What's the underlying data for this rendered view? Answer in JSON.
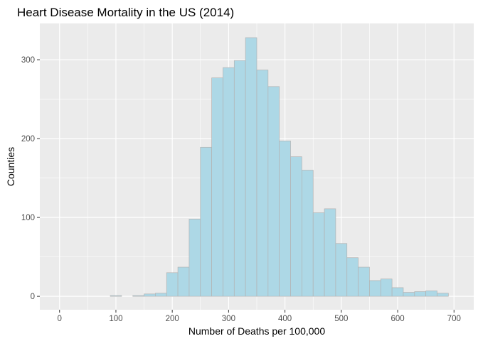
{
  "chart_data": {
    "type": "bar",
    "title": "Heart Disease Mortality in the US (2014)",
    "xlabel": "Number of Deaths per 100,000",
    "ylabel": "Counties",
    "xlim": [
      -35,
      735
    ],
    "ylim": [
      -17,
      346
    ],
    "x_ticks": [
      0,
      100,
      200,
      300,
      400,
      500,
      600,
      700
    ],
    "y_ticks": [
      0,
      100,
      200,
      300
    ],
    "bin_width": 20,
    "bins": [
      {
        "start": 10,
        "count": 0
      },
      {
        "start": 30,
        "count": 0
      },
      {
        "start": 50,
        "count": 0
      },
      {
        "start": 70,
        "count": 0
      },
      {
        "start": 90,
        "count": 1
      },
      {
        "start": 110,
        "count": 0
      },
      {
        "start": 130,
        "count": 1
      },
      {
        "start": 150,
        "count": 3
      },
      {
        "start": 170,
        "count": 4
      },
      {
        "start": 190,
        "count": 30
      },
      {
        "start": 210,
        "count": 37
      },
      {
        "start": 230,
        "count": 98
      },
      {
        "start": 250,
        "count": 189
      },
      {
        "start": 270,
        "count": 277
      },
      {
        "start": 290,
        "count": 290
      },
      {
        "start": 310,
        "count": 299
      },
      {
        "start": 330,
        "count": 328
      },
      {
        "start": 350,
        "count": 287
      },
      {
        "start": 370,
        "count": 266
      },
      {
        "start": 390,
        "count": 197
      },
      {
        "start": 410,
        "count": 177
      },
      {
        "start": 430,
        "count": 160
      },
      {
        "start": 450,
        "count": 106
      },
      {
        "start": 470,
        "count": 111
      },
      {
        "start": 490,
        "count": 67
      },
      {
        "start": 510,
        "count": 49
      },
      {
        "start": 530,
        "count": 37
      },
      {
        "start": 550,
        "count": 20
      },
      {
        "start": 570,
        "count": 22
      },
      {
        "start": 590,
        "count": 11
      },
      {
        "start": 610,
        "count": 5
      },
      {
        "start": 630,
        "count": 6
      },
      {
        "start": 650,
        "count": 7
      },
      {
        "start": 670,
        "count": 4
      }
    ],
    "colors": {
      "panel": "#ebebeb",
      "grid_major": "#ffffff",
      "bar_fill": "#add8e6",
      "bar_stroke": "#b3b3b3"
    }
  }
}
